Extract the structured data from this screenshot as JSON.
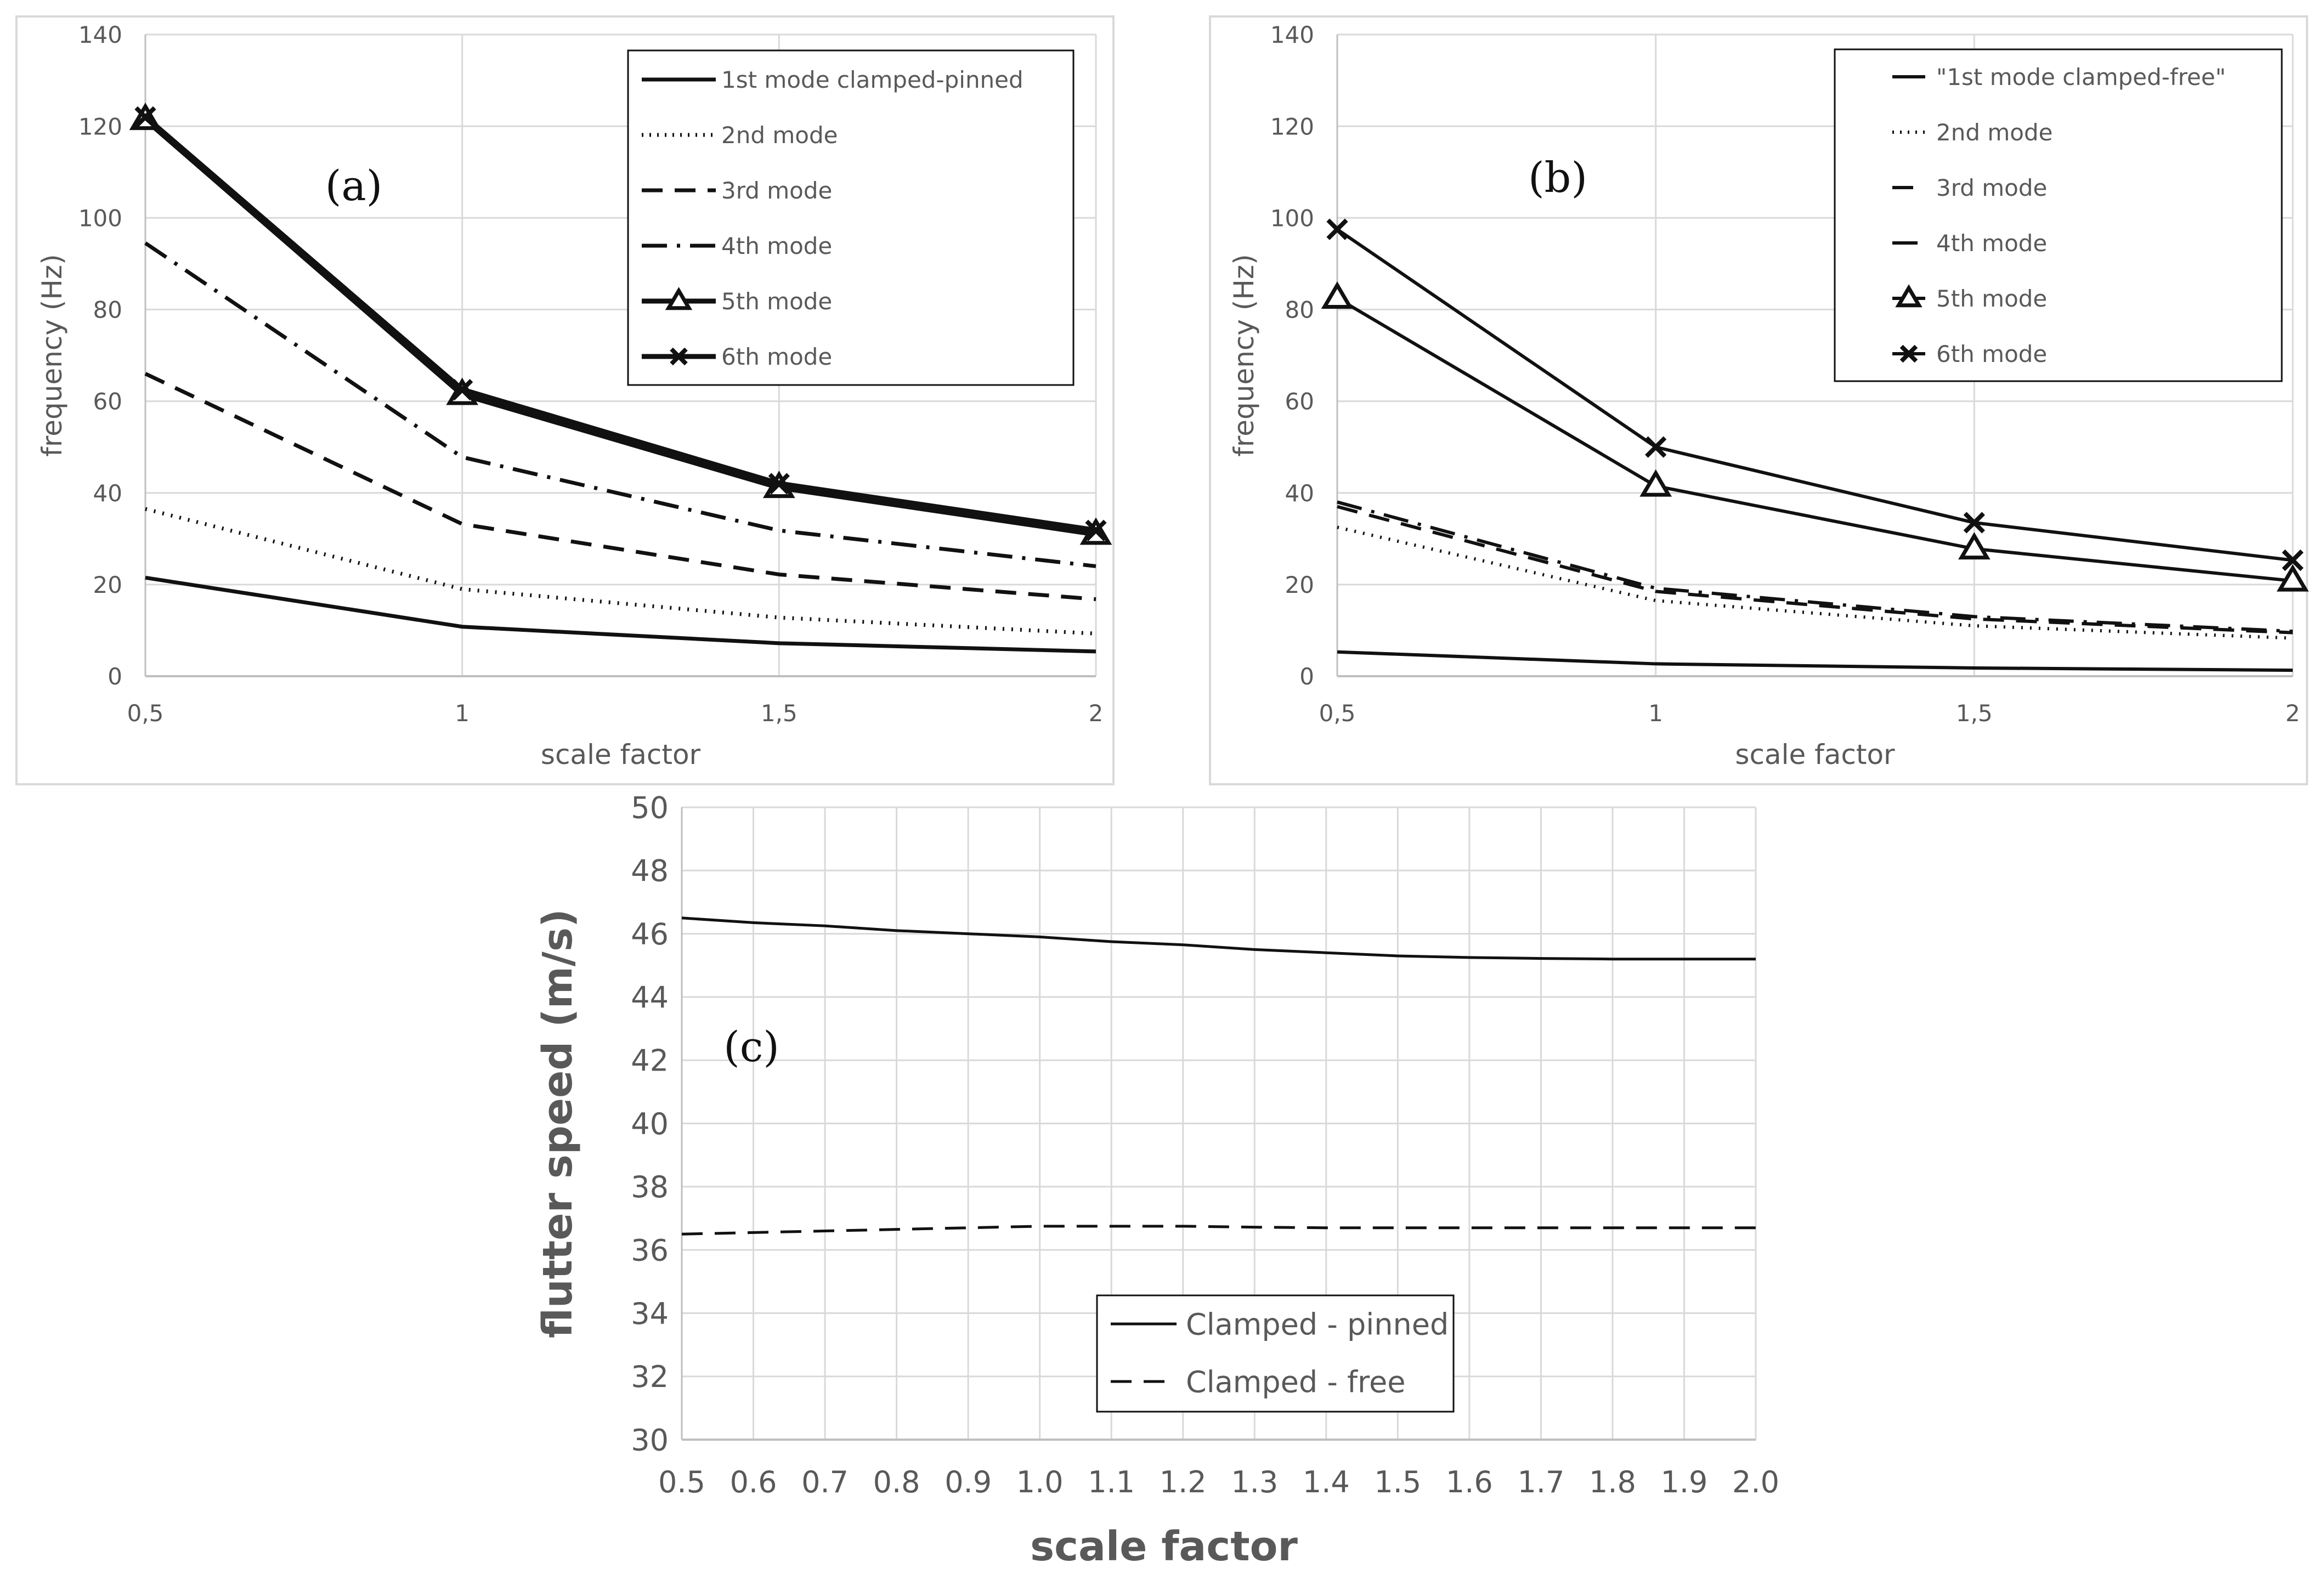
{
  "chart_data": [
    {
      "type": "line",
      "panel_label": "(a)",
      "xlabel": "scale factor",
      "ylabel": "frequency (Hz)",
      "x_ticks": [
        "0,5",
        "1",
        "1,5",
        "2"
      ],
      "y_ticks": [
        "0",
        "20",
        "40",
        "60",
        "80",
        "100",
        "120",
        "140"
      ],
      "xlim": [
        0.5,
        2
      ],
      "ylim": [
        0,
        140
      ],
      "grid": true,
      "legend_position": "top-right",
      "x": [
        0.5,
        1,
        1.5,
        2
      ],
      "series": [
        {
          "name": "1st mode clamped-pinned",
          "values": [
            21.5,
            10.8,
            7.2,
            5.4
          ],
          "style": "solid",
          "marker": "none"
        },
        {
          "name": "2nd mode",
          "values": [
            36.5,
            19.0,
            12.8,
            9.3
          ],
          "style": "dotted",
          "marker": "none"
        },
        {
          "name": "3rd mode",
          "values": [
            66,
            33.2,
            22.2,
            16.8
          ],
          "style": "dashed",
          "marker": "none"
        },
        {
          "name": "4th mode",
          "values": [
            94.5,
            47.8,
            31.8,
            24.0
          ],
          "style": "dashdot",
          "marker": "none"
        },
        {
          "name": "5th mode",
          "values": [
            121.5,
            61.5,
            41.2,
            31.0
          ],
          "style": "solid",
          "marker": "triangle"
        },
        {
          "name": "6th mode",
          "values": [
            122,
            62.5,
            42.0,
            31.8
          ],
          "style": "solid",
          "marker": "x"
        }
      ]
    },
    {
      "type": "line",
      "panel_label": "(b)",
      "xlabel": "scale factor",
      "ylabel": "frequency (Hz)",
      "x_ticks": [
        "0,5",
        "1",
        "1,5",
        "2"
      ],
      "y_ticks": [
        "0",
        "20",
        "40",
        "60",
        "80",
        "100",
        "120",
        "140"
      ],
      "xlim": [
        0.5,
        2
      ],
      "ylim": [
        0,
        140
      ],
      "grid": true,
      "legend_position": "top-right",
      "x": [
        0.5,
        1,
        1.5,
        2
      ],
      "series": [
        {
          "name": "\"1st mode clamped-free\"",
          "values": [
            5.3,
            2.7,
            1.8,
            1.3
          ],
          "style": "solid",
          "marker": "none"
        },
        {
          "name": "2nd mode",
          "values": [
            32.5,
            16.5,
            11.0,
            8.3
          ],
          "style": "dotted",
          "marker": "none"
        },
        {
          "name": "3rd mode",
          "values": [
            37.0,
            18.5,
            12.5,
            9.5
          ],
          "style": "dashed",
          "marker": "none"
        },
        {
          "name": "4th mode",
          "values": [
            38.0,
            19.2,
            13.0,
            9.8
          ],
          "style": "dashdot",
          "marker": "none"
        },
        {
          "name": "5th mode",
          "values": [
            82.5,
            41.5,
            27.8,
            20.8
          ],
          "style": "solid",
          "marker": "triangle"
        },
        {
          "name": "6th mode",
          "values": [
            97.5,
            50.0,
            33.5,
            25.3
          ],
          "style": "solid",
          "marker": "x"
        }
      ]
    },
    {
      "type": "line",
      "panel_label": "(c)",
      "xlabel": "scale factor",
      "ylabel": "flutter speed (m/s)",
      "x_ticks": [
        "0.5",
        "0.6",
        "0.7",
        "0.8",
        "0.9",
        "1.0",
        "1.1",
        "1.2",
        "1.3",
        "1.4",
        "1.5",
        "1.6",
        "1.7",
        "1.8",
        "1.9",
        "2.0"
      ],
      "y_ticks": [
        "30",
        "32",
        "34",
        "36",
        "38",
        "40",
        "42",
        "44",
        "46",
        "48",
        "50"
      ],
      "xlim": [
        0.5,
        2.0
      ],
      "ylim": [
        30,
        50
      ],
      "grid": true,
      "legend_position": "bottom-center",
      "x": [
        0.5,
        0.6,
        0.7,
        0.8,
        0.9,
        1.0,
        1.1,
        1.2,
        1.3,
        1.4,
        1.5,
        1.6,
        1.7,
        1.8,
        1.9,
        2.0
      ],
      "series": [
        {
          "name": "Clamped - pinned",
          "values": [
            46.5,
            46.35,
            46.25,
            46.1,
            46.0,
            45.9,
            45.75,
            45.65,
            45.5,
            45.4,
            45.3,
            45.25,
            45.22,
            45.2,
            45.2,
            45.2
          ],
          "style": "solid",
          "marker": "none"
        },
        {
          "name": "Clamped - free",
          "values": [
            36.5,
            36.55,
            36.6,
            36.65,
            36.7,
            36.75,
            36.75,
            36.75,
            36.72,
            36.7,
            36.7,
            36.7,
            36.7,
            36.7,
            36.7,
            36.7
          ],
          "style": "dashed",
          "marker": "none"
        }
      ]
    }
  ],
  "colors": {
    "line": "#111111",
    "grid": "#d9d9d9",
    "axis": "#bfbfbf",
    "text": "#595959",
    "border": "#d9d9d9"
  }
}
